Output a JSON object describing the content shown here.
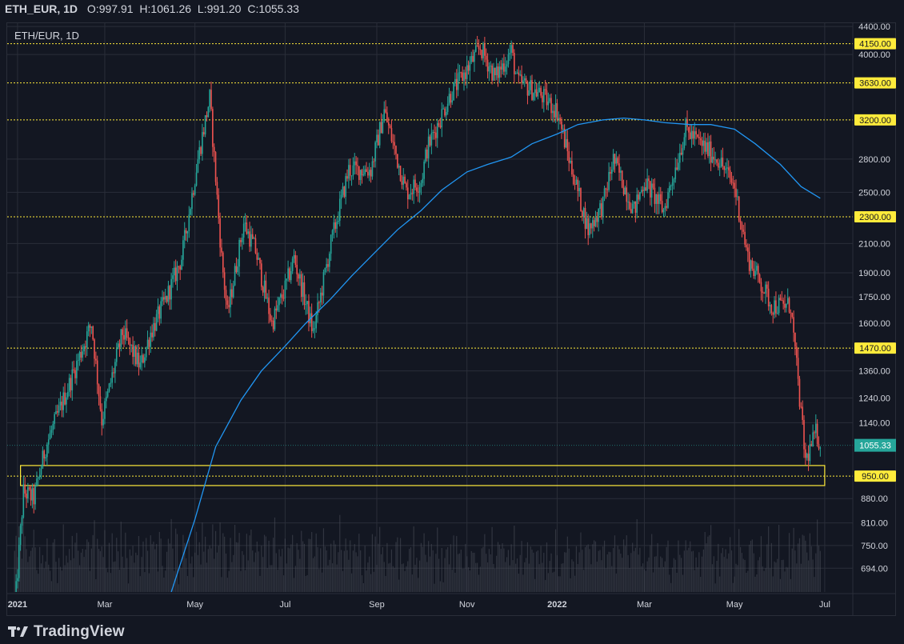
{
  "header": {
    "symbol": "ETH_EUR, 1D",
    "open_label": "O:",
    "open_value": "997.91",
    "high_label": "H:",
    "high_value": "1061.26",
    "low_label": "L:",
    "low_value": "991.20",
    "close_label": "C:",
    "close_value": "1055.33"
  },
  "chart_title": "ETH/EUR, 1D",
  "brand": "TradingView",
  "colors": {
    "background": "#131722",
    "grid": "#2a2e39",
    "up": "#26a69a",
    "down": "#ef5350",
    "ma": "#2196f3",
    "level": "#ffeb3b",
    "last_price": "#26a69a"
  },
  "chart_data": {
    "type": "candlestick",
    "scale": "log",
    "ylim": [
      640,
      4450
    ],
    "y_ticks": [
      694,
      750,
      810,
      880,
      1140,
      1240,
      1360,
      1600,
      1750,
      1900,
      2100,
      2500,
      2800,
      4000,
      4400
    ],
    "y_tick_labels": [
      "694.00",
      "750.00",
      "810.00",
      "880.00",
      "1140.00",
      "1240.00",
      "1360.00",
      "1600.00",
      "1750.00",
      "1900.00",
      "2100.00",
      "2500.00",
      "2800.00",
      "4000.00",
      "4400.00"
    ],
    "x_range": [
      "2020-12-25",
      "2022-07-20"
    ],
    "x_ticks": [
      {
        "date": "2021-01-01",
        "label": "2021",
        "bold": true
      },
      {
        "date": "2021-03-01",
        "label": "Mar",
        "bold": false
      },
      {
        "date": "2021-05-01",
        "label": "May",
        "bold": false
      },
      {
        "date": "2021-07-01",
        "label": "Jul",
        "bold": false
      },
      {
        "date": "2021-09-01",
        "label": "Sep",
        "bold": false
      },
      {
        "date": "2021-11-01",
        "label": "Nov",
        "bold": false
      },
      {
        "date": "2022-01-01",
        "label": "2022",
        "bold": true
      },
      {
        "date": "2022-03-01",
        "label": "Mar",
        "bold": false
      },
      {
        "date": "2022-05-01",
        "label": "May",
        "bold": false
      },
      {
        "date": "2022-07-01",
        "label": "Jul",
        "bold": false
      }
    ],
    "levels": [
      {
        "value": 4150,
        "label": "4150.00"
      },
      {
        "value": 3630,
        "label": "3630.00"
      },
      {
        "value": 3200,
        "label": "3200.00"
      },
      {
        "value": 2300,
        "label": "2300.00"
      },
      {
        "value": 1470,
        "label": "1470.00"
      },
      {
        "value": 950,
        "label": "950.00"
      }
    ],
    "zone": {
      "from_date": "2021-01-03",
      "to_date": "2022-07-01",
      "low": 920,
      "high": 985
    },
    "last_price": {
      "value": 1055.33,
      "label": "1055.33"
    },
    "price_path": [
      [
        "2020-12-30",
        600
      ],
      [
        "2021-01-05",
        900
      ],
      [
        "2021-01-12",
        880
      ],
      [
        "2021-01-20",
        1050
      ],
      [
        "2021-02-05",
        1300
      ],
      [
        "2021-02-20",
        1600
      ],
      [
        "2021-02-27",
        1150
      ],
      [
        "2021-03-13",
        1550
      ],
      [
        "2021-03-25",
        1380
      ],
      [
        "2021-04-01",
        1550
      ],
      [
        "2021-04-12",
        1750
      ],
      [
        "2021-04-22",
        2000
      ],
      [
        "2021-05-03",
        2800
      ],
      [
        "2021-05-11",
        3450
      ],
      [
        "2021-05-19",
        2000
      ],
      [
        "2021-05-23",
        1650
      ],
      [
        "2021-06-03",
        2250
      ],
      [
        "2021-06-11",
        2050
      ],
      [
        "2021-06-22",
        1600
      ],
      [
        "2021-07-01",
        1800
      ],
      [
        "2021-07-07",
        2000
      ],
      [
        "2021-07-20",
        1550
      ],
      [
        "2021-08-01",
        2100
      ],
      [
        "2021-08-13",
        2700
      ],
      [
        "2021-08-28",
        2700
      ],
      [
        "2021-09-06",
        3300
      ],
      [
        "2021-09-21",
        2500
      ],
      [
        "2021-10-01",
        2600
      ],
      [
        "2021-10-05",
        2900
      ],
      [
        "2021-10-21",
        3500
      ],
      [
        "2021-11-01",
        3800
      ],
      [
        "2021-11-10",
        4100
      ],
      [
        "2021-11-20",
        3700
      ],
      [
        "2021-12-01",
        4050
      ],
      [
        "2021-12-05",
        3650
      ],
      [
        "2021-12-20",
        3500
      ],
      [
        "2022-01-01",
        3300
      ],
      [
        "2022-01-10",
        2750
      ],
      [
        "2022-01-22",
        2200
      ],
      [
        "2022-02-01",
        2400
      ],
      [
        "2022-02-08",
        2800
      ],
      [
        "2022-02-22",
        2350
      ],
      [
        "2022-03-01",
        2600
      ],
      [
        "2022-03-14",
        2350
      ],
      [
        "2022-03-29",
        3100
      ],
      [
        "2022-04-08",
        2950
      ],
      [
        "2022-04-20",
        2800
      ],
      [
        "2022-05-01",
        2550
      ],
      [
        "2022-05-10",
        2000
      ],
      [
        "2022-05-18",
        1850
      ],
      [
        "2022-05-26",
        1700
      ],
      [
        "2022-06-01",
        1700
      ],
      [
        "2022-06-08",
        1700
      ],
      [
        "2022-06-18",
        1000
      ],
      [
        "2022-06-25",
        1100
      ],
      [
        "2022-06-29",
        1055
      ]
    ],
    "ma_series": [
      [
        "2021-04-15",
        640
      ],
      [
        "2021-05-01",
        820
      ],
      [
        "2021-05-15",
        1050
      ],
      [
        "2021-06-01",
        1230
      ],
      [
        "2021-06-15",
        1360
      ],
      [
        "2021-07-01",
        1480
      ],
      [
        "2021-07-15",
        1600
      ],
      [
        "2021-08-01",
        1740
      ],
      [
        "2021-08-15",
        1880
      ],
      [
        "2021-09-01",
        2050
      ],
      [
        "2021-09-15",
        2200
      ],
      [
        "2021-10-01",
        2350
      ],
      [
        "2021-10-15",
        2520
      ],
      [
        "2021-11-01",
        2680
      ],
      [
        "2021-11-15",
        2750
      ],
      [
        "2021-12-01",
        2820
      ],
      [
        "2021-12-15",
        2950
      ],
      [
        "2022-01-01",
        3050
      ],
      [
        "2022-01-15",
        3150
      ],
      [
        "2022-02-01",
        3200
      ],
      [
        "2022-02-15",
        3220
      ],
      [
        "2022-03-01",
        3200
      ],
      [
        "2022-03-15",
        3170
      ],
      [
        "2022-04-01",
        3150
      ],
      [
        "2022-04-15",
        3150
      ],
      [
        "2022-05-01",
        3100
      ],
      [
        "2022-05-15",
        2950
      ],
      [
        "2022-06-01",
        2750
      ],
      [
        "2022-06-15",
        2550
      ],
      [
        "2022-06-28",
        2450
      ]
    ]
  }
}
